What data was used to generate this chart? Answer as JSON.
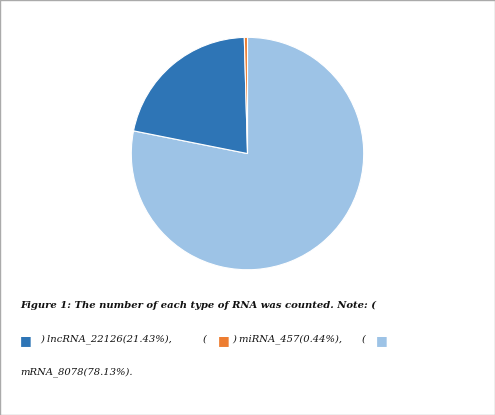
{
  "labels": [
    "mRNA_8078",
    "lncRNA_22126",
    "miRNA_457"
  ],
  "values": [
    78.13,
    21.43,
    0.44
  ],
  "colors": [
    "#9DC3E6",
    "#2E75B6",
    "#ED7D31"
  ],
  "startangle": 90,
  "bg_color": "#ffffff",
  "border_color": "#aaaaaa",
  "caption_line1": "Figure 1: The number of each type of RNA was counted. Note: (",
  "caption_line2_items": [
    {
      "text": ") lncRNA_22126(21.43%),",
      "color_box": "#2E75B6"
    },
    {
      "text": "miRNA_457(0.44%),",
      "color_box": "#ED7D31"
    },
    {
      "text": "mRNA_8078(78.13%).",
      "color_box": "#9DC3E6"
    }
  ],
  "caption_line3": "mRNA_8078(78.13%)."
}
